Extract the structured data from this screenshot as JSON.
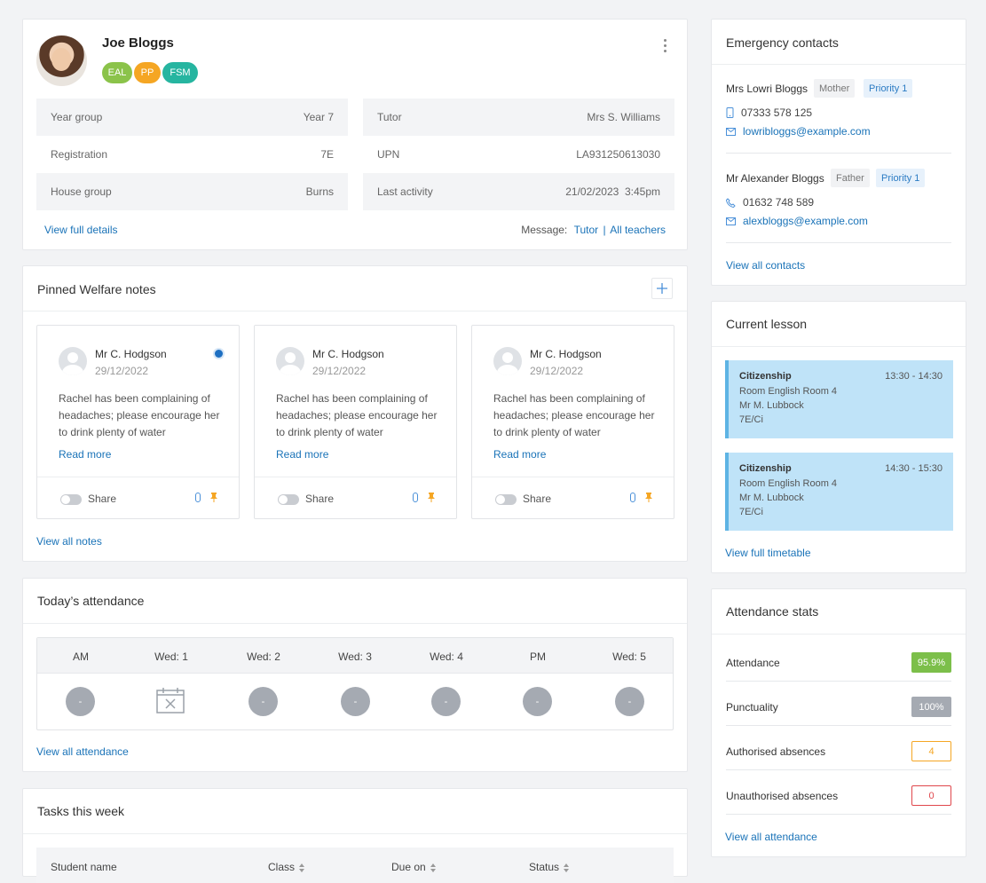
{
  "profile": {
    "name": "Joe Bloggs",
    "badges": [
      {
        "label": "EAL",
        "color": "#8bc34a"
      },
      {
        "label": "PP",
        "color": "#f5a623"
      },
      {
        "label": "FSM",
        "color": "#26b5a0"
      }
    ],
    "details_left": [
      {
        "label": "Year group",
        "value": "Year 7"
      },
      {
        "label": "Registration",
        "value": "7E"
      },
      {
        "label": "House group",
        "value": "Burns"
      }
    ],
    "details_right": [
      {
        "label": "Tutor",
        "value": "Mrs S. Williams"
      },
      {
        "label": "UPN",
        "value": "LA931250613030"
      },
      {
        "label": "Last activity",
        "value": "21/02/2023  3:45pm"
      }
    ],
    "view_full_details": "View full details",
    "message_label": "Message:",
    "message_tutor": "Tutor",
    "message_sep": "|",
    "message_all": "All teachers"
  },
  "welfare": {
    "title": "Pinned Welfare notes",
    "notes": [
      {
        "author": "Mr C. Hodgson",
        "date": "29/12/2022",
        "text": "Rachel has been complaining of headaches; please encourage her to drink plenty of water",
        "more": "Read more",
        "share": "Share",
        "unread": true
      },
      {
        "author": "Mr C. Hodgson",
        "date": "29/12/2022",
        "text": "Rachel has been complaining of headaches; please encourage her to drink plenty of water",
        "more": "Read more",
        "share": "Share",
        "unread": false
      },
      {
        "author": "Mr C. Hodgson",
        "date": "29/12/2022",
        "text": "Rachel has been complaining of headaches; please encourage her to drink plenty of water",
        "more": "Read more",
        "share": "Share",
        "unread": false
      }
    ],
    "view_all": "View all notes"
  },
  "attendance_today": {
    "title": "Today’s attendance",
    "columns": [
      "AM",
      "Wed: 1",
      "Wed: 2",
      "Wed: 3",
      "Wed: 4",
      "PM",
      "Wed: 5"
    ],
    "marks": [
      "-",
      "calendar-x",
      "-",
      "-",
      "-",
      "-",
      "-"
    ],
    "view_all": "View all attendance"
  },
  "tasks": {
    "title": "Tasks this week",
    "columns": [
      "Student name",
      "Class",
      "Due on",
      "Status"
    ]
  },
  "contacts": {
    "title": "Emergency contacts",
    "people": [
      {
        "name": "Mrs Lowri Bloggs",
        "relation": "Mother",
        "priority": "Priority 1",
        "phone": "07333 578 125",
        "phone_icon": "mobile-icon",
        "email": "lowribloggs@example.com"
      },
      {
        "name": "Mr Alexander Bloggs",
        "relation": "Father",
        "priority": "Priority 1",
        "phone": "01632 748 589",
        "phone_icon": "phone-icon",
        "email": "alexbloggs@example.com"
      }
    ],
    "view_all": "View all contacts"
  },
  "current_lesson": {
    "title": "Current lesson",
    "lessons": [
      {
        "subject": "Citizenship",
        "time": "13:30 - 14:30",
        "room": "Room English Room 4",
        "teacher": "Mr M. Lubbock",
        "class": "7E/Ci"
      },
      {
        "subject": "Citizenship",
        "time": "14:30 - 15:30",
        "room": "Room English Room 4",
        "teacher": "Mr M. Lubbock",
        "class": "7E/Ci"
      }
    ],
    "view_timetable": "View full timetable"
  },
  "attendance_stats": {
    "title": "Attendance stats",
    "rows": [
      {
        "label": "Attendance",
        "value": "95.9%",
        "style": "green"
      },
      {
        "label": "Punctuality",
        "value": "100%",
        "style": "grey"
      },
      {
        "label": "Authorised absences",
        "value": "4",
        "style": "amber"
      },
      {
        "label": "Unauthorised absences",
        "value": "0",
        "style": "red"
      }
    ],
    "view_all": "View all attendance"
  }
}
